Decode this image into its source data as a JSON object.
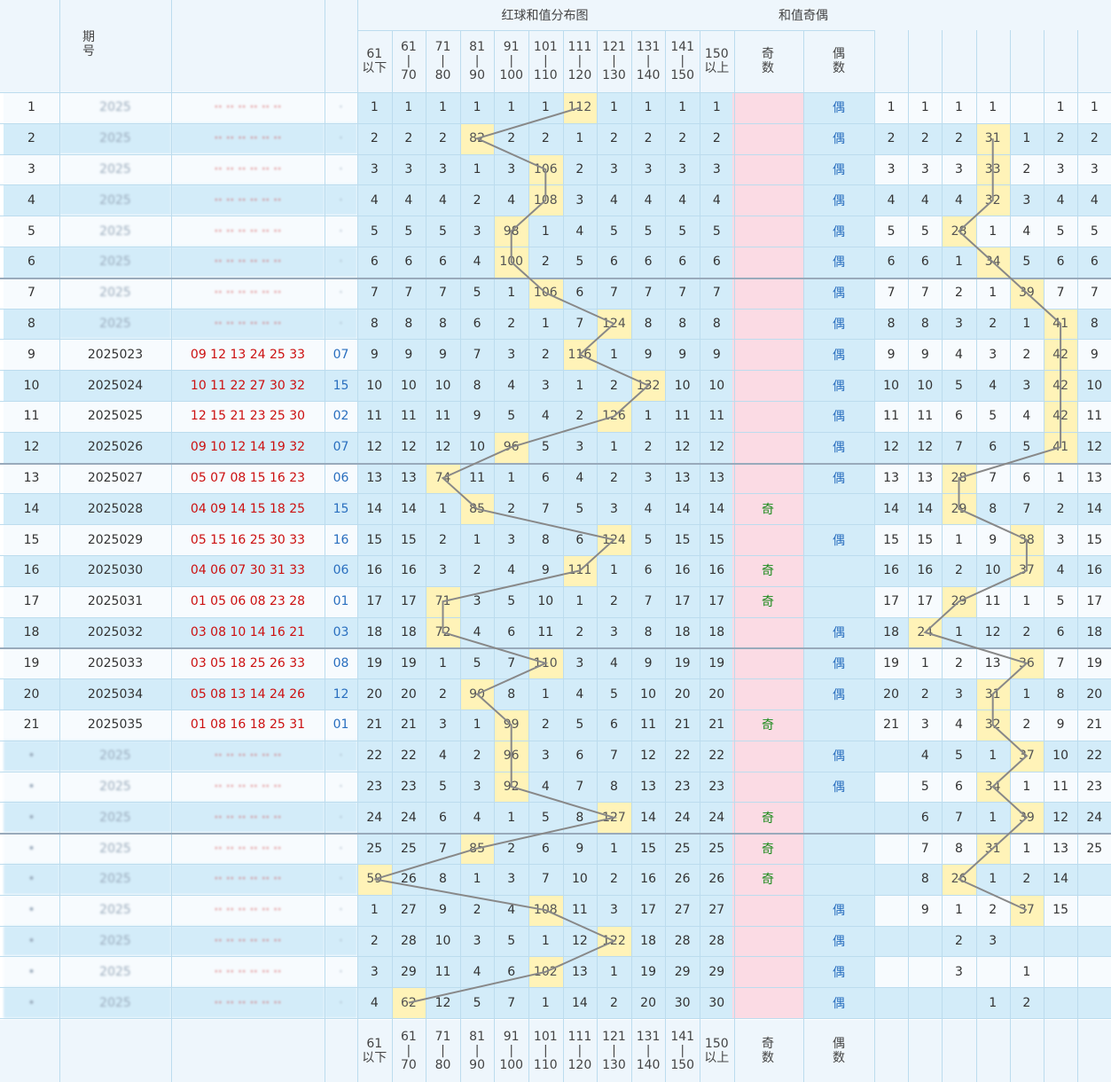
{
  "header": {
    "dist_title": "红球和值分布图",
    "parity_title": "和值奇偶",
    "period_label": "期\n号",
    "ranges": [
      "61\n以下",
      "61\n|\n70",
      "71\n|\n80",
      "81\n|\n90",
      "91\n|\n100",
      "101\n|\n110",
      "111\n|\n120",
      "121\n|\n130",
      "131\n|\n140",
      "141\n|\n150",
      "150\n以上"
    ],
    "odd_label": "奇\n数",
    "even_label": "偶\n数"
  },
  "chart_data": {
    "type": "table",
    "title": "红球和值分布图",
    "rows": [
      {
        "n": "1",
        "period": "",
        "balls": "",
        "blue": "",
        "dist": [
          "1",
          "1",
          "1",
          "1",
          "1",
          "1",
          "112",
          "1",
          "1",
          "1",
          "1"
        ],
        "hit": 6,
        "odd": "",
        "even": "偶",
        "right": [
          "1",
          "1",
          "1",
          "1",
          "",
          "1",
          "1"
        ],
        "rhit": null
      },
      {
        "n": "2",
        "period": "",
        "balls": "",
        "blue": "",
        "dist": [
          "2",
          "2",
          "2",
          "82",
          "2",
          "2",
          "1",
          "2",
          "2",
          "2",
          "2"
        ],
        "hit": 3,
        "odd": "",
        "even": "偶",
        "right": [
          "2",
          "2",
          "2",
          "31",
          "1",
          "2",
          "2"
        ],
        "rhit": 3
      },
      {
        "n": "3",
        "period": "",
        "balls": "",
        "blue": "",
        "dist": [
          "3",
          "3",
          "3",
          "1",
          "3",
          "106",
          "2",
          "3",
          "3",
          "3",
          "3"
        ],
        "hit": 5,
        "odd": "",
        "even": "偶",
        "right": [
          "3",
          "3",
          "3",
          "33",
          "2",
          "3",
          "3"
        ],
        "rhit": 3
      },
      {
        "n": "4",
        "period": "",
        "balls": "",
        "blue": "",
        "dist": [
          "4",
          "4",
          "4",
          "2",
          "4",
          "108",
          "3",
          "4",
          "4",
          "4",
          "4"
        ],
        "hit": 5,
        "odd": "",
        "even": "偶",
        "right": [
          "4",
          "4",
          "4",
          "32",
          "3",
          "4",
          "4"
        ],
        "rhit": 3
      },
      {
        "n": "5",
        "period": "",
        "balls": "",
        "blue": "",
        "dist": [
          "5",
          "5",
          "5",
          "3",
          "98",
          "1",
          "4",
          "5",
          "5",
          "5",
          "5"
        ],
        "hit": 4,
        "odd": "",
        "even": "偶",
        "right": [
          "5",
          "5",
          "28",
          "1",
          "4",
          "5",
          "5"
        ],
        "rhit": 2
      },
      {
        "n": "6",
        "period": "",
        "balls": "",
        "blue": "",
        "dist": [
          "6",
          "6",
          "6",
          "4",
          "100",
          "2",
          "5",
          "6",
          "6",
          "6",
          "6"
        ],
        "hit": 4,
        "odd": "",
        "even": "偶",
        "right": [
          "6",
          "6",
          "1",
          "34",
          "5",
          "6",
          "6"
        ],
        "rhit": 3
      },
      {
        "n": "7",
        "period": "",
        "balls": "",
        "blue": "",
        "dist": [
          "7",
          "7",
          "7",
          "5",
          "1",
          "106",
          "6",
          "7",
          "7",
          "7",
          "7"
        ],
        "hit": 5,
        "odd": "",
        "even": "偶",
        "right": [
          "7",
          "7",
          "2",
          "1",
          "39",
          "7",
          "7"
        ],
        "rhit": 4
      },
      {
        "n": "8",
        "period": "",
        "balls": "",
        "blue": "",
        "dist": [
          "8",
          "8",
          "8",
          "6",
          "2",
          "1",
          "7",
          "124",
          "8",
          "8",
          "8"
        ],
        "hit": 7,
        "odd": "",
        "even": "偶",
        "right": [
          "8",
          "8",
          "3",
          "2",
          "1",
          "41",
          "8"
        ],
        "rhit": 5
      },
      {
        "n": "9",
        "period": "2025023",
        "balls": "09 12 13 24 25 33",
        "blue": "07",
        "dist": [
          "9",
          "9",
          "9",
          "7",
          "3",
          "2",
          "116",
          "1",
          "9",
          "9",
          "9"
        ],
        "hit": 6,
        "odd": "",
        "even": "偶",
        "right": [
          "9",
          "9",
          "4",
          "3",
          "2",
          "42",
          "9"
        ],
        "rhit": 5
      },
      {
        "n": "10",
        "period": "2025024",
        "balls": "10 11 22 27 30 32",
        "blue": "15",
        "dist": [
          "10",
          "10",
          "10",
          "8",
          "4",
          "3",
          "1",
          "2",
          "132",
          "10",
          "10"
        ],
        "hit": 8,
        "odd": "",
        "even": "偶",
        "right": [
          "10",
          "10",
          "5",
          "4",
          "3",
          "42",
          "10"
        ],
        "rhit": 5
      },
      {
        "n": "11",
        "period": "2025025",
        "balls": "12 15 21 23 25 30",
        "blue": "02",
        "dist": [
          "11",
          "11",
          "11",
          "9",
          "5",
          "4",
          "2",
          "126",
          "1",
          "11",
          "11"
        ],
        "hit": 7,
        "odd": "",
        "even": "偶",
        "right": [
          "11",
          "11",
          "6",
          "5",
          "4",
          "42",
          "11"
        ],
        "rhit": 5
      },
      {
        "n": "12",
        "period": "2025026",
        "balls": "09 10 12 14 19 32",
        "blue": "07",
        "dist": [
          "12",
          "12",
          "12",
          "10",
          "96",
          "5",
          "3",
          "1",
          "2",
          "12",
          "12"
        ],
        "hit": 4,
        "odd": "",
        "even": "偶",
        "right": [
          "12",
          "12",
          "7",
          "6",
          "5",
          "41",
          "12"
        ],
        "rhit": 5
      },
      {
        "n": "13",
        "period": "2025027",
        "balls": "05 07 08 15 16 23",
        "blue": "06",
        "dist": [
          "13",
          "13",
          "74",
          "11",
          "1",
          "6",
          "4",
          "2",
          "3",
          "13",
          "13"
        ],
        "hit": 2,
        "odd": "",
        "even": "偶",
        "right": [
          "13",
          "13",
          "28",
          "7",
          "6",
          "1",
          "13"
        ],
        "rhit": 2
      },
      {
        "n": "14",
        "period": "2025028",
        "balls": "04 09 14 15 18 25",
        "blue": "15",
        "dist": [
          "14",
          "14",
          "1",
          "85",
          "2",
          "7",
          "5",
          "3",
          "4",
          "14",
          "14"
        ],
        "hit": 3,
        "odd": "奇",
        "even": "",
        "right": [
          "14",
          "14",
          "29",
          "8",
          "7",
          "2",
          "14"
        ],
        "rhit": 2
      },
      {
        "n": "15",
        "period": "2025029",
        "balls": "05 15 16 25 30 33",
        "blue": "16",
        "dist": [
          "15",
          "15",
          "2",
          "1",
          "3",
          "8",
          "6",
          "124",
          "5",
          "15",
          "15"
        ],
        "hit": 7,
        "odd": "",
        "even": "偶",
        "right": [
          "15",
          "15",
          "1",
          "9",
          "38",
          "3",
          "15"
        ],
        "rhit": 4
      },
      {
        "n": "16",
        "period": "2025030",
        "balls": "04 06 07 30 31 33",
        "blue": "06",
        "dist": [
          "16",
          "16",
          "3",
          "2",
          "4",
          "9",
          "111",
          "1",
          "6",
          "16",
          "16"
        ],
        "hit": 6,
        "odd": "奇",
        "even": "",
        "right": [
          "16",
          "16",
          "2",
          "10",
          "37",
          "4",
          "16"
        ],
        "rhit": 4
      },
      {
        "n": "17",
        "period": "2025031",
        "balls": "01 05 06 08 23 28",
        "blue": "01",
        "dist": [
          "17",
          "17",
          "71",
          "3",
          "5",
          "10",
          "1",
          "2",
          "7",
          "17",
          "17"
        ],
        "hit": 2,
        "odd": "奇",
        "even": "",
        "right": [
          "17",
          "17",
          "29",
          "11",
          "1",
          "5",
          "17"
        ],
        "rhit": 2
      },
      {
        "n": "18",
        "period": "2025032",
        "balls": "03 08 10 14 16 21",
        "blue": "03",
        "dist": [
          "18",
          "18",
          "72",
          "4",
          "6",
          "11",
          "2",
          "3",
          "8",
          "18",
          "18"
        ],
        "hit": 2,
        "odd": "",
        "even": "偶",
        "right": [
          "18",
          "24",
          "1",
          "12",
          "2",
          "6",
          "18"
        ],
        "rhit": 1
      },
      {
        "n": "19",
        "period": "2025033",
        "balls": "03 05 18 25 26 33",
        "blue": "08",
        "dist": [
          "19",
          "19",
          "1",
          "5",
          "7",
          "110",
          "3",
          "4",
          "9",
          "19",
          "19"
        ],
        "hit": 5,
        "odd": "",
        "even": "偶",
        "right": [
          "19",
          "1",
          "2",
          "13",
          "36",
          "7",
          "19"
        ],
        "rhit": 4
      },
      {
        "n": "20",
        "period": "2025034",
        "balls": "05 08 13 14 24 26",
        "blue": "12",
        "dist": [
          "20",
          "20",
          "2",
          "90",
          "8",
          "1",
          "4",
          "5",
          "10",
          "20",
          "20"
        ],
        "hit": 3,
        "odd": "",
        "even": "偶",
        "right": [
          "20",
          "2",
          "3",
          "31",
          "1",
          "8",
          "20"
        ],
        "rhit": 3
      },
      {
        "n": "21",
        "period": "2025035",
        "balls": "01 08 16 18 25 31",
        "blue": "01",
        "dist": [
          "21",
          "21",
          "3",
          "1",
          "99",
          "2",
          "5",
          "6",
          "11",
          "21",
          "21"
        ],
        "hit": 4,
        "odd": "奇",
        "even": "",
        "right": [
          "21",
          "3",
          "4",
          "32",
          "2",
          "9",
          "21"
        ],
        "rhit": 3
      },
      {
        "n": "",
        "period": "",
        "balls": "",
        "blue": "",
        "dist": [
          "22",
          "22",
          "4",
          "2",
          "96",
          "3",
          "6",
          "7",
          "12",
          "22",
          "22"
        ],
        "hit": 4,
        "odd": "",
        "even": "偶",
        "right": [
          "",
          "4",
          "5",
          "1",
          "37",
          "10",
          "22"
        ],
        "rhit": 4
      },
      {
        "n": "",
        "period": "",
        "balls": "",
        "blue": "",
        "dist": [
          "23",
          "23",
          "5",
          "3",
          "92",
          "4",
          "7",
          "8",
          "13",
          "23",
          "23"
        ],
        "hit": 4,
        "odd": "",
        "even": "偶",
        "right": [
          "",
          "5",
          "6",
          "34",
          "1",
          "11",
          "23"
        ],
        "rhit": 3
      },
      {
        "n": "",
        "period": "",
        "balls": "",
        "blue": "",
        "dist": [
          "24",
          "24",
          "6",
          "4",
          "1",
          "5",
          "8",
          "127",
          "14",
          "24",
          "24"
        ],
        "hit": 7,
        "odd": "奇",
        "even": "",
        "right": [
          "",
          "6",
          "7",
          "1",
          "39",
          "12",
          "24"
        ],
        "rhit": 4
      },
      {
        "n": "",
        "period": "",
        "balls": "",
        "blue": "",
        "dist": [
          "25",
          "25",
          "7",
          "85",
          "2",
          "6",
          "9",
          "1",
          "15",
          "25",
          "25"
        ],
        "hit": 3,
        "odd": "奇",
        "even": "",
        "right": [
          "",
          "7",
          "8",
          "31",
          "1",
          "13",
          "25"
        ],
        "rhit": 3
      },
      {
        "n": "",
        "period": "",
        "balls": "",
        "blue": "",
        "dist": [
          "59",
          "26",
          "8",
          "1",
          "3",
          "7",
          "10",
          "2",
          "16",
          "26",
          "26"
        ],
        "hit": 0,
        "odd": "奇",
        "even": "",
        "right": [
          "",
          "8",
          "26",
          "1",
          "2",
          "14",
          ""
        ],
        "rhit": 2
      },
      {
        "n": "",
        "period": "",
        "balls": "",
        "blue": "",
        "dist": [
          "1",
          "27",
          "9",
          "2",
          "4",
          "108",
          "11",
          "3",
          "17",
          "27",
          "27"
        ],
        "hit": 5,
        "odd": "",
        "even": "偶",
        "right": [
          "",
          "9",
          "1",
          "2",
          "37",
          "15",
          ""
        ],
        "rhit": 4
      },
      {
        "n": "",
        "period": "",
        "balls": "",
        "blue": "",
        "dist": [
          "2",
          "28",
          "10",
          "3",
          "5",
          "1",
          "12",
          "122",
          "18",
          "28",
          "28"
        ],
        "hit": 7,
        "odd": "",
        "even": "偶",
        "right": [
          "",
          "",
          "2",
          "3",
          "",
          "",
          ""
        ],
        "rhit": null
      },
      {
        "n": "",
        "period": "",
        "balls": "",
        "blue": "",
        "dist": [
          "3",
          "29",
          "11",
          "4",
          "6",
          "102",
          "13",
          "1",
          "19",
          "29",
          "29"
        ],
        "hit": 5,
        "odd": "",
        "even": "偶",
        "right": [
          "",
          "",
          "3",
          "",
          "1",
          "",
          ""
        ],
        "rhit": null
      },
      {
        "n": "",
        "period": "",
        "balls": "",
        "blue": "",
        "dist": [
          "4",
          "62",
          "12",
          "5",
          "7",
          "1",
          "14",
          "2",
          "20",
          "30",
          "30"
        ],
        "hit": 1,
        "odd": "",
        "even": "偶",
        "right": [
          "",
          "",
          "",
          "1",
          "2",
          "",
          ""
        ],
        "rhit": null
      }
    ],
    "line_color": "#888888",
    "highlight_color": "#fff3b8",
    "odd_even_bg": "#fbdbe4",
    "dist_bg": "#d3ecf9"
  }
}
